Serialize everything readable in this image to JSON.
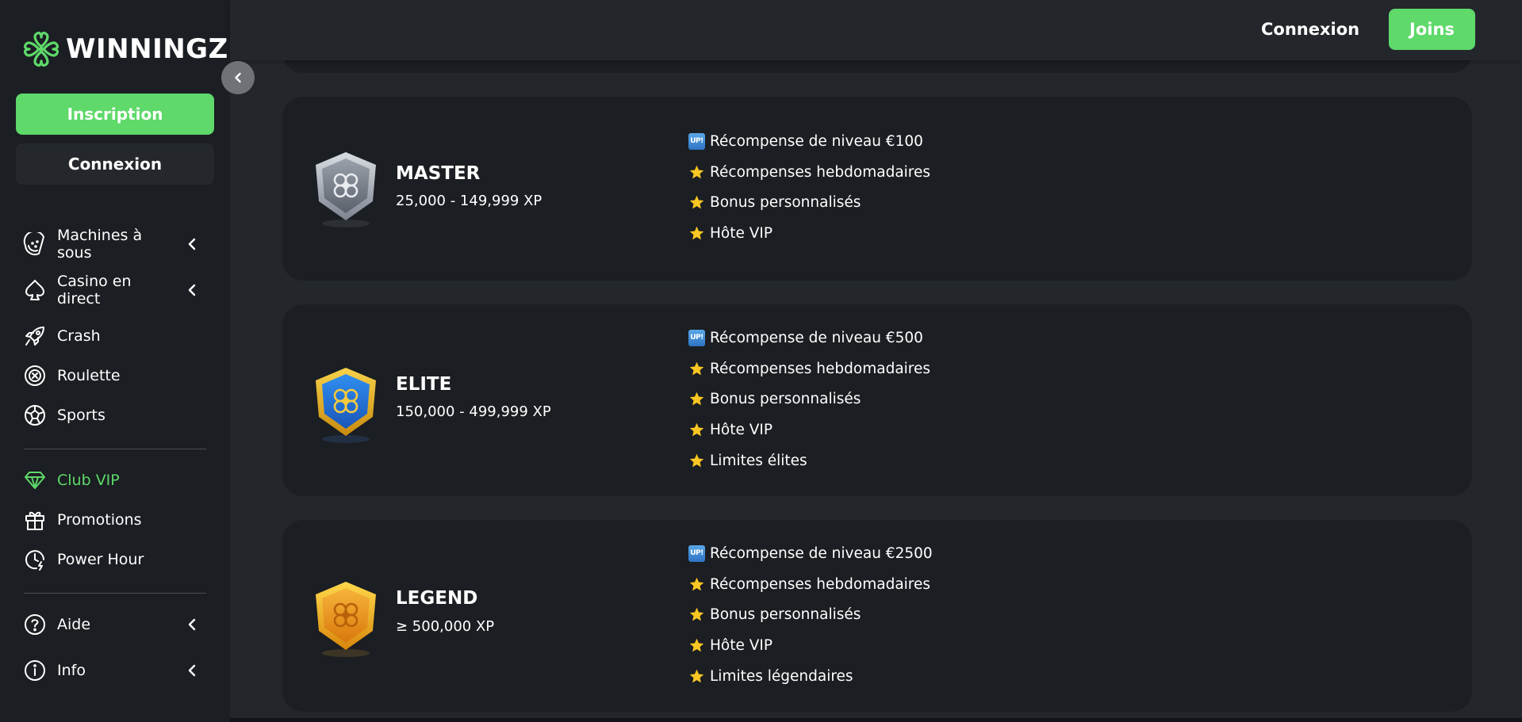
{
  "brand": {
    "name": "WINNINGZ",
    "accent": "#5ed96a"
  },
  "sidebar": {
    "signup_label": "Inscription",
    "login_label": "Connexion",
    "items": [
      {
        "label": "Machines à sous",
        "icon": "watermelon-icon",
        "expandable": true
      },
      {
        "label": "Casino en direct",
        "icon": "spade-icon",
        "expandable": true
      },
      {
        "label": "Crash",
        "icon": "rocket-icon",
        "expandable": false
      },
      {
        "label": "Roulette",
        "icon": "roulette-icon",
        "expandable": false
      },
      {
        "label": "Sports",
        "icon": "soccer-ball-icon",
        "expandable": false
      },
      {
        "label": "Club VIP",
        "icon": "diamond-icon",
        "expandable": false,
        "active": true
      },
      {
        "label": "Promotions",
        "icon": "gift-icon",
        "expandable": false
      },
      {
        "label": "Power Hour",
        "icon": "clock-bolt-icon",
        "expandable": false
      },
      {
        "label": "Aide",
        "icon": "help-circle-icon",
        "expandable": true
      },
      {
        "label": "Info",
        "icon": "info-circle-icon",
        "expandable": true
      }
    ]
  },
  "topbar": {
    "login_label": "Connexion",
    "join_label": "Joins"
  },
  "tiers": [
    {
      "name": "MASTER",
      "xp": "25,000 - 149,999 XP",
      "badge_color": "silver",
      "perks": [
        {
          "icon": "up-icon",
          "text": "Récompense de niveau €100"
        },
        {
          "icon": "star-icon",
          "text": "Récompenses hebdomadaires"
        },
        {
          "icon": "star-icon",
          "text": "Bonus personnalisés"
        },
        {
          "icon": "star-icon",
          "text": "Hôte VIP"
        }
      ]
    },
    {
      "name": "ELITE",
      "xp": "150,000 - 499,999 XP",
      "badge_color": "blue",
      "perks": [
        {
          "icon": "up-icon",
          "text": "Récompense de niveau €500"
        },
        {
          "icon": "star-icon",
          "text": "Récompenses hebdomadaires"
        },
        {
          "icon": "star-icon",
          "text": "Bonus personnalisés"
        },
        {
          "icon": "star-icon",
          "text": "Hôte VIP"
        },
        {
          "icon": "star-icon",
          "text": "Limites élites"
        }
      ]
    },
    {
      "name": "LEGEND",
      "xp": "≥ 500,000 XP",
      "badge_color": "gold",
      "perks": [
        {
          "icon": "up-icon",
          "text": "Récompense de niveau €2500"
        },
        {
          "icon": "star-icon",
          "text": "Récompenses hebdomadaires"
        },
        {
          "icon": "star-icon",
          "text": "Bonus personnalisés"
        },
        {
          "icon": "star-icon",
          "text": "Hôte VIP"
        },
        {
          "icon": "star-icon",
          "text": "Limites légendaires"
        }
      ]
    }
  ],
  "up_icon_text": "UP!"
}
